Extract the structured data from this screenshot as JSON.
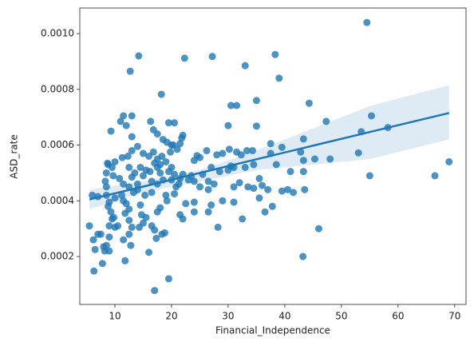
{
  "chart_data": {
    "type": "scatter",
    "x_label": "Financial_Independence",
    "y_label": "ASD_rate",
    "color": "#1f77b4",
    "xlim": [
      3.8,
      72.0
    ],
    "ylim": [
      2.8e-05,
      0.001092
    ],
    "xticks": [
      10,
      20,
      30,
      40,
      50,
      60,
      70
    ],
    "yticks": [
      0.0002,
      0.0004,
      0.0006,
      0.0008,
      {
        "value": 0.001,
        "label": "0.0010"
      }
    ],
    "x": [
      54.5,
      38.3,
      14.2,
      22.3,
      27.2,
      33,
      12.7,
      39,
      44.3,
      35,
      30.5,
      31.5,
      18.2,
      55.3,
      47.3,
      58.2,
      53.5,
      43.3,
      35,
      30,
      11.5,
      13,
      11,
      12,
      16.3,
      9.3,
      19.5,
      20.5,
      16.8,
      17.5,
      21.8,
      22,
      13,
      18.5,
      19.2,
      20,
      37.5,
      33.3,
      34.3,
      30.2,
      31.5,
      32.3,
      26.2,
      28,
      29,
      24.5,
      25,
      24,
      37.5,
      39.5,
      42.8,
      45.3,
      48,
      53,
      43.3,
      38.5,
      34.5,
      33,
      31,
      30,
      30.5,
      35.5,
      41,
      43.3,
      55,
      66.5,
      69,
      27,
      28.5,
      25.5,
      23.5,
      22,
      21.5,
      23,
      24,
      26.5,
      27.5,
      32,
      33.5,
      34.5,
      36,
      37,
      39.5,
      40.5,
      41.5,
      43.5,
      31,
      35.5,
      26.5,
      25,
      24,
      22.5,
      27,
      29,
      31,
      36.5,
      37.8,
      32.5,
      28.2,
      26.5,
      24,
      21.5,
      22,
      46,
      43.2,
      19.5,
      17,
      6,
      7,
      8.5,
      5.5,
      6.2,
      6.5,
      6.3,
      7.5,
      7,
      8,
      8.2,
      9,
      8.5,
      7.8,
      9,
      9,
      9.5,
      9.3,
      10,
      10.5,
      9.8,
      8.8,
      9,
      10,
      8.5,
      8.3,
      8.5,
      8.8,
      9.5,
      8.7,
      10,
      9.7,
      10.8,
      11.5,
      11.2,
      11.5,
      12,
      12.5,
      11.8,
      11.5,
      12.5,
      11.8,
      12.5,
      13,
      12.8,
      14,
      14.5,
      14.7,
      15,
      15.5,
      14.3,
      16,
      16.5,
      17,
      17.3,
      18.3,
      18.8,
      17.5,
      18,
      19.2,
      19,
      16.5,
      15.3,
      14,
      15,
      13.5,
      12.5,
      11.3,
      12.3,
      13,
      14,
      15,
      16,
      16.8,
      17.5,
      17,
      18,
      19,
      20,
      19.5,
      20.5,
      20,
      18.5,
      17.5,
      16.5,
      18,
      17.5,
      19.8,
      21,
      20.3,
      21.5,
      18.3,
      15.5,
      16.2,
      14.5,
      13,
      12.5,
      13.3,
      20.8,
      21.3,
      20.5
    ],
    "y": [
      0.00104,
      0.000925,
      0.00092,
      0.000912,
      0.000918,
      0.000885,
      0.000865,
      0.00084,
      0.00075,
      0.00076,
      0.000742,
      0.000742,
      0.000782,
      0.000705,
      0.000685,
      0.000663,
      0.000648,
      0.000622,
      0.000668,
      0.00067,
      0.000705,
      0.000705,
      0.000685,
      0.00067,
      0.000685,
      0.00065,
      0.00068,
      0.00068,
      0.000655,
      0.00064,
      0.000625,
      0.000635,
      0.00063,
      0.00062,
      0.00061,
      0.0006,
      0.000605,
      0.00058,
      0.00058,
      0.000585,
      0.000575,
      0.000565,
      0.00058,
      0.000565,
      0.00057,
      0.000562,
      0.000555,
      0.000545,
      0.00057,
      0.000592,
      0.000575,
      0.00055,
      0.00055,
      0.000572,
      0.000545,
      0.00053,
      0.00053,
      0.00052,
      0.00052,
      0.00051,
      0.000525,
      0.00048,
      0.000505,
      0.000505,
      0.00049,
      0.00049,
      0.00054,
      0.00052,
      0.000505,
      0.000495,
      0.00049,
      0.000495,
      0.00048,
      0.000475,
      0.00047,
      0.00047,
      0.00046,
      0.000465,
      0.00045,
      0.000445,
      0.000455,
      0.00044,
      0.000435,
      0.00044,
      0.00043,
      0.00044,
      0.00045,
      0.00041,
      0.00044,
      0.00045,
      0.000395,
      0.00039,
      0.000385,
      0.0004,
      0.000395,
      0.00036,
      0.00038,
      0.000335,
      0.000305,
      0.00036,
      0.00036,
      0.00035,
      0.000335,
      0.0003,
      0.0002,
      0.00012,
      7.8e-05,
      0.00042,
      0.000415,
      0.00042,
      0.00031,
      0.00026,
      0.000225,
      0.000148,
      0.00028,
      0.00028,
      0.000235,
      0.00022,
      0.00022,
      0.00024,
      0.000175,
      0.00027,
      0.00031,
      0.000335,
      0.00036,
      0.000305,
      0.00031,
      0.00034,
      0.00038,
      0.000395,
      0.00041,
      0.00045,
      0.00047,
      0.0005,
      0.00053,
      0.00052,
      0.000535,
      0.00054,
      0.00049,
      0.00048,
      0.00046,
      0.00042,
      0.0004,
      0.00039,
      0.00037,
      0.000355,
      0.00026,
      0.00028,
      0.000185,
      0.00033,
      0.000305,
      0.00024,
      0.00044,
      0.000385,
      0.00035,
      0.00032,
      0.00034,
      0.000305,
      0.000215,
      0.00031,
      0.000295,
      0.000265,
      0.00028,
      0.000285,
      0.00036,
      0.000375,
      0.0004,
      0.00042,
      0.00043,
      0.00042,
      0.00046,
      0.00049,
      0.0005,
      0.00052,
      0.000555,
      0.00056,
      0.00058,
      0.000595,
      0.00057,
      0.00056,
      0.000575,
      0.00055,
      0.000535,
      0.00053,
      0.00054,
      0.00052,
      0.000505,
      0.000495,
      0.000475,
      0.000475,
      0.00046,
      0.00047,
      0.0005,
      0.00052,
      0.000575,
      0.000585,
      0.0006,
      0.000605,
      0.00056,
      0.00051,
      0.000505,
      0.00052,
      0.000485,
      0.00045,
      0.00043,
      0.00045,
      0.00046,
      0.000425
    ],
    "regression": {
      "x": [
        5.5,
        15,
        25,
        35,
        45,
        55,
        69
      ],
      "y": [
        0.000405,
        0.000451,
        0.0005,
        0.000549,
        0.000598,
        0.000647,
        0.000715
      ],
      "ci_lower": [
        0.00037,
        0.00043,
        0.00047,
        0.00051,
        0.00053,
        0.00055,
        0.00062
      ],
      "ci_upper": [
        0.00044,
        0.00047,
        0.00051,
        0.00058,
        0.00066,
        0.00074,
        0.000815
      ]
    }
  }
}
